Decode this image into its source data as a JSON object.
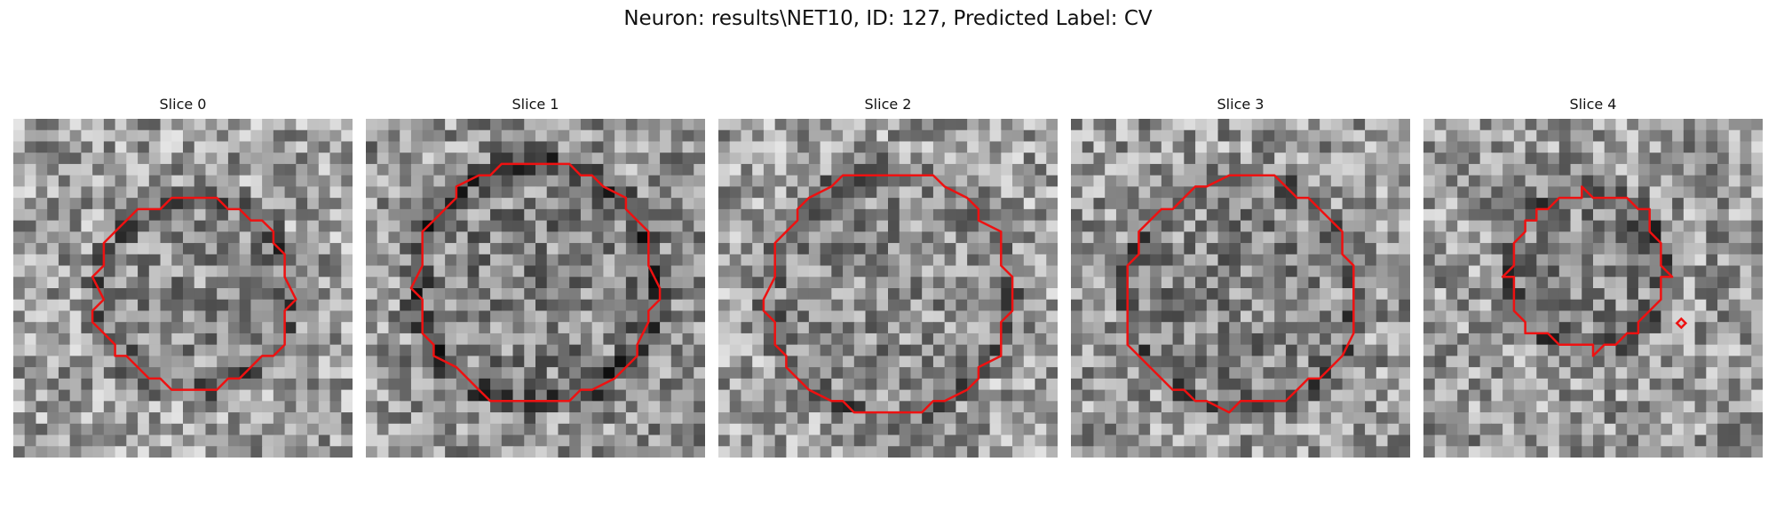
{
  "figure": {
    "title": "Neuron: results\\NET10, ID: 127, Predicted Label: CV"
  },
  "panels": [
    {
      "title": "Slice 0"
    },
    {
      "title": "Slice 1"
    },
    {
      "title": "Slice 2"
    },
    {
      "title": "Slice 3"
    },
    {
      "title": "Slice 4"
    }
  ],
  "colors": {
    "contour": "#ee1111",
    "background": "#ffffff"
  }
}
